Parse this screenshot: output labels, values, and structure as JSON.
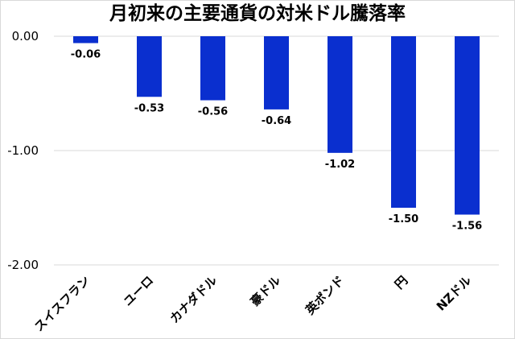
{
  "chart_data": {
    "type": "bar",
    "title": "月初来の主要通貨の対米ドル騰落率",
    "categories": [
      "スイスフラン",
      "ユーロ",
      "カナダドル",
      "豪ドル",
      "英ポンド",
      "円",
      "NZドル"
    ],
    "values": [
      -0.06,
      -0.53,
      -0.56,
      -0.64,
      -1.02,
      -1.5,
      -1.56
    ],
    "data_labels": [
      "-0.06",
      "-0.53",
      "-0.56",
      "-0.64",
      "-1.02",
      "-1.50",
      "-1.56"
    ],
    "ylim": [
      -2.0,
      0.0
    ],
    "yticks": [
      "0.00",
      "-1.00",
      "-2.00"
    ],
    "ytick_values": [
      0,
      -1,
      -2
    ],
    "xlabel": "",
    "ylabel": "",
    "grid": true,
    "legend": "none",
    "bar_color": "#0a2fcf",
    "grid_color": "#d9d9d9"
  }
}
